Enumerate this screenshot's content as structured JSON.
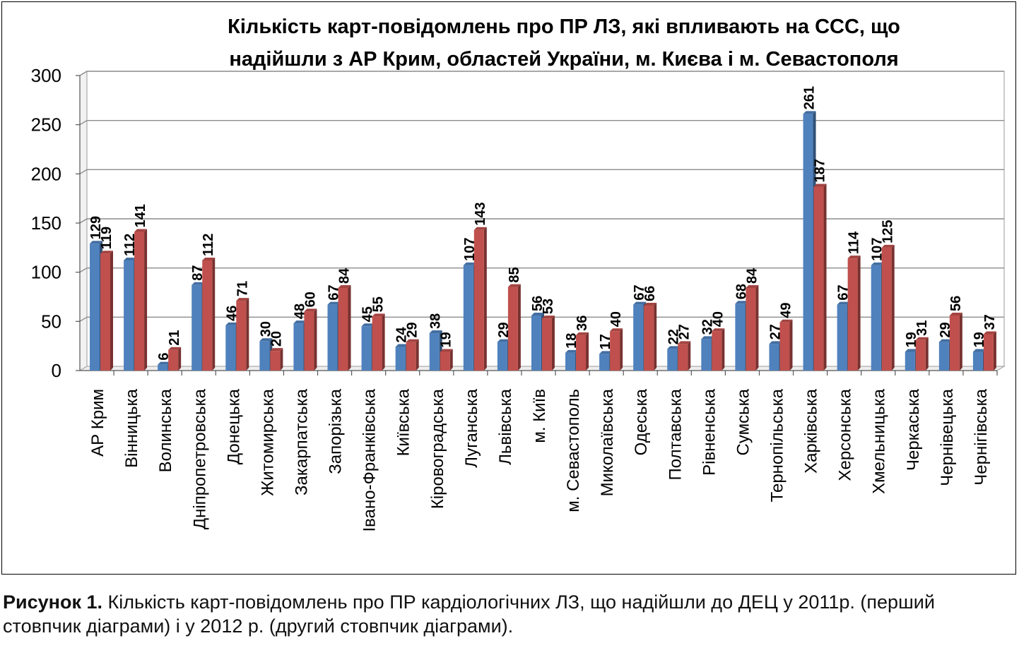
{
  "chart_data": {
    "type": "bar",
    "title_lines": [
      "Кількість карт-повідомлень про ПР ЛЗ, які впливають на ССС, що",
      "надійшли з АР Крим, областей України, м. Києва і м. Севастополя"
    ],
    "ylim": [
      0,
      300
    ],
    "yticks": [
      "0",
      "50",
      "100",
      "150",
      "200",
      "250",
      "300"
    ],
    "categories": [
      "АР Крим",
      "Вінницька",
      "Волинська",
      "Дніпропетровська",
      "Донецька",
      "Житомирська",
      "Закарпатська",
      "Запорізька",
      "Івано-Франківська",
      "Київська",
      "Кіровоградська",
      "Луганська",
      "Львівська",
      "м. Київ",
      "м. Севастополь",
      "Миколаївська",
      "Одеська",
      "Полтавська",
      "Рівненська",
      "Сумська",
      "Тернопільська",
      "Харківська",
      "Херсонська",
      "Хмельницька",
      "Черкаська",
      "Чернівецька",
      "Чернігівська"
    ],
    "series": [
      {
        "values": [
          129,
          112,
          6,
          87,
          46,
          30,
          48,
          67,
          45,
          24,
          38,
          107,
          29,
          56,
          18,
          17,
          67,
          22,
          32,
          68,
          27,
          261,
          67,
          107,
          19,
          29,
          19
        ],
        "color": "#4f81bd"
      },
      {
        "values": [
          119,
          141,
          21,
          112,
          71,
          20,
          60,
          84,
          55,
          29,
          19,
          143,
          85,
          53,
          36,
          40,
          66,
          27,
          40,
          84,
          49,
          187,
          114,
          125,
          31,
          56,
          37
        ],
        "color": "#c0504d"
      }
    ],
    "grid": true
  },
  "caption": {
    "bold": "Рисунок 1.",
    "text": " Кількість карт-повідомлень про ПР кардіологічних ЛЗ, що надійшли до ДЕЦ у 2011р. (перший стовпчик діаграми) і у 2012 р. (другий стовпчик діаграми)."
  }
}
